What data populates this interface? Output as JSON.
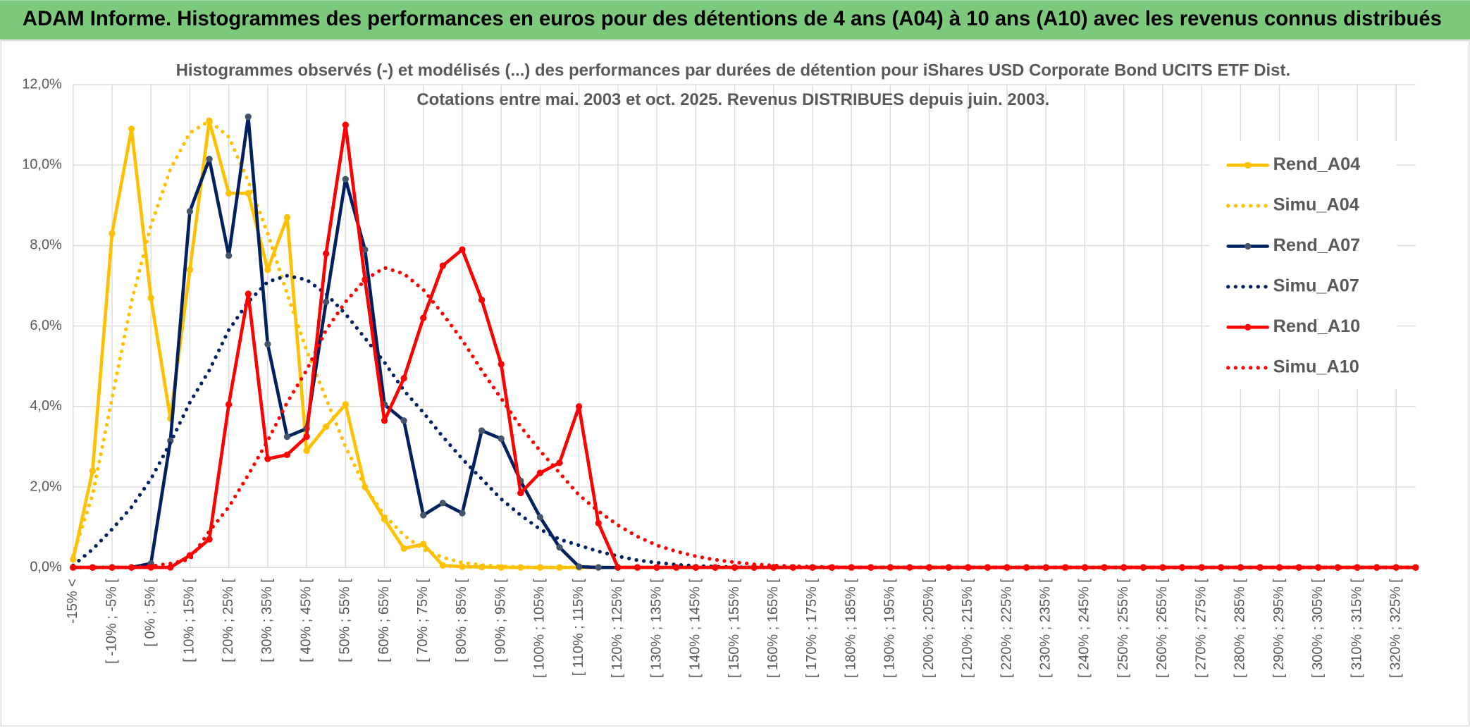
{
  "header": {
    "title": "ADAM Informe. Histogrammes des performances en euros pour des détentions de 4 ans (A04) à 10 ans (A10) avec les revenus connus distribués"
  },
  "chart_data": {
    "type": "line",
    "title": "Histogrammes observés (-) et modélisés (...) des performances par durées de détention pour iShares USD Corporate Bond UCITS ETF Dist.",
    "subtitle": "Cotations entre mai. 2003 et oct. 2025. Revenus DISTRIBUES depuis juin. 2003.",
    "categories": [
      "-15% <",
      null,
      "[ -10% ; -5% [",
      null,
      "[ 0% ; 5% [",
      null,
      "[ 10% ; 15% [",
      null,
      "[ 20% ; 25% [",
      null,
      "[ 30% ; 35% [",
      null,
      "[ 40% ; 45% [",
      null,
      "[ 50% ; 55% [",
      null,
      "[ 60% ; 65% [",
      null,
      "[ 70% ; 75% [",
      null,
      "[ 80% ; 85% [",
      null,
      "[ 90% ; 95% [",
      null,
      "[ 100% ; 105% [",
      null,
      "[ 110% ; 115% [",
      null,
      "[ 120% ; 125% [",
      null,
      "[ 130% ; 135% [",
      null,
      "[ 140% ; 145% [",
      null,
      "[ 150% ; 155% [",
      null,
      "[ 160% ; 165% [",
      null,
      "[ 170% ; 175% [",
      null,
      "[ 180% ; 185% [",
      null,
      "[ 190% ; 195% [",
      null,
      "[ 200% ; 205% [",
      null,
      "[ 210% ; 215% [",
      null,
      "[ 220% ; 225% [",
      null,
      "[ 230% ; 235% [",
      null,
      "[ 240% ; 245% [",
      null,
      "[ 250% ; 255% [",
      null,
      "[ 260% ; 265% [",
      null,
      "[ 270% ; 275% [",
      null,
      "[ 280% ; 285% [",
      null,
      "[ 290% ; 295% [",
      null,
      "[ 300% ; 305% [",
      null,
      "[ 310% ; 315% [",
      null,
      "[ 320% ; 325% [",
      null
    ],
    "ylim": [
      0,
      12
    ],
    "yticks": [
      {
        "value": 0,
        "label": "0,0%"
      },
      {
        "value": 2,
        "label": "2,0%"
      },
      {
        "value": 4,
        "label": "4,0%"
      },
      {
        "value": 6,
        "label": "6,0%"
      },
      {
        "value": 8,
        "label": "8,0%"
      },
      {
        "value": 10,
        "label": "10,0%"
      },
      {
        "value": 12,
        "label": "12,0%"
      }
    ],
    "grid": true,
    "legend": "right",
    "series": [
      {
        "name": "Rend_A04",
        "color": "#ffc000",
        "style": "solid",
        "markers": true,
        "values": [
          0.2,
          2.4,
          8.3,
          10.9,
          6.7,
          3.7,
          7.4,
          11.1,
          9.3,
          9.3,
          7.4,
          8.7,
          2.9,
          3.5,
          4.05,
          2.0,
          1.2,
          0.47,
          0.58,
          0.05,
          0.02,
          0.01,
          0,
          0,
          0,
          0,
          0,
          0,
          0,
          0,
          0,
          0,
          0,
          0,
          0,
          0,
          0,
          0,
          0,
          0,
          0,
          0,
          0,
          0,
          0,
          0,
          0,
          0,
          0,
          0,
          0,
          0,
          0,
          0,
          0,
          0,
          0,
          0,
          0,
          0,
          0,
          0,
          0,
          0,
          0,
          0,
          0,
          0,
          0,
          0
        ]
      },
      {
        "name": "Simu_A04",
        "color": "#ffc000",
        "style": "dotted",
        "markers": false,
        "values": [
          0.3,
          1.8,
          4.2,
          6.6,
          8.5,
          9.9,
          10.8,
          11.1,
          10.7,
          9.6,
          8.3,
          6.8,
          5.4,
          4.2,
          3.0,
          2.0,
          1.3,
          0.8,
          0.45,
          0.25,
          0.12,
          0.06,
          0.03,
          0.01,
          0,
          0,
          0,
          0,
          0,
          0,
          0,
          0,
          0,
          0,
          0,
          0,
          0,
          0,
          0,
          0,
          0,
          0,
          0,
          0,
          0,
          0,
          0,
          0,
          0,
          0,
          0,
          0,
          0,
          0,
          0,
          0,
          0,
          0,
          0,
          0,
          0,
          0,
          0,
          0,
          0,
          0,
          0,
          0,
          0,
          0
        ]
      },
      {
        "name": "Rend_A07",
        "color": "#002060",
        "style": "solid",
        "markers": true,
        "values": [
          0,
          0,
          0,
          0,
          0.1,
          3.15,
          8.85,
          10.15,
          7.75,
          11.2,
          5.55,
          3.25,
          3.45,
          6.6,
          9.65,
          7.9,
          4.05,
          3.65,
          1.3,
          1.6,
          1.35,
          3.4,
          3.2,
          2.15,
          1.25,
          0.5,
          0.02,
          0,
          0,
          0,
          0,
          0,
          0,
          0,
          0,
          0,
          0,
          0,
          0,
          0,
          0,
          0,
          0,
          0,
          0,
          0,
          0,
          0,
          0,
          0,
          0,
          0,
          0,
          0,
          0,
          0,
          0,
          0,
          0,
          0,
          0,
          0,
          0,
          0,
          0,
          0,
          0,
          0,
          0,
          0
        ]
      },
      {
        "name": "Simu_A07",
        "color": "#002060",
        "style": "dotted",
        "markers": false,
        "values": [
          0.05,
          0.45,
          0.95,
          1.5,
          2.2,
          3.1,
          4.1,
          4.9,
          5.9,
          6.6,
          7.1,
          7.25,
          7.15,
          6.8,
          6.3,
          5.7,
          5.1,
          4.4,
          3.85,
          3.25,
          2.7,
          2.2,
          1.7,
          1.3,
          0.95,
          0.7,
          0.55,
          0.4,
          0.28,
          0.18,
          0.12,
          0.07,
          0.04,
          0.02,
          0.01,
          0,
          0,
          0,
          0,
          0,
          0,
          0,
          0,
          0,
          0,
          0,
          0,
          0,
          0,
          0,
          0,
          0,
          0,
          0,
          0,
          0,
          0,
          0,
          0,
          0,
          0,
          0,
          0,
          0,
          0,
          0,
          0,
          0,
          0,
          0
        ]
      },
      {
        "name": "Rend_A10",
        "color": "#ff0000",
        "style": "solid",
        "markers": true,
        "values": [
          0,
          0,
          0,
          0,
          0,
          0,
          0.3,
          0.7,
          4.05,
          6.8,
          2.7,
          2.8,
          3.25,
          7.8,
          11.0,
          7.15,
          3.65,
          4.7,
          6.2,
          7.5,
          7.9,
          6.65,
          5.05,
          1.85,
          2.35,
          2.6,
          4.0,
          1.1,
          0,
          0,
          0,
          0,
          0,
          0,
          0,
          0,
          0,
          0,
          0,
          0,
          0,
          0,
          0,
          0,
          0,
          0,
          0,
          0,
          0,
          0,
          0,
          0,
          0,
          0,
          0,
          0,
          0,
          0,
          0,
          0,
          0,
          0,
          0,
          0,
          0,
          0,
          0,
          0,
          0,
          0
        ]
      },
      {
        "name": "Simu_A10",
        "color": "#ff0000",
        "style": "dotted",
        "markers": false,
        "values": [
          0,
          0,
          0,
          0,
          0.03,
          0.1,
          0.2,
          0.9,
          1.5,
          2.3,
          3.15,
          4.1,
          4.9,
          5.9,
          6.6,
          7.15,
          7.45,
          7.3,
          6.9,
          6.3,
          5.65,
          4.9,
          4.2,
          3.5,
          2.9,
          2.35,
          1.8,
          1.4,
          1.05,
          0.77,
          0.55,
          0.4,
          0.28,
          0.19,
          0.13,
          0.08,
          0.05,
          0.03,
          0.02,
          0.01,
          0,
          0,
          0,
          0,
          0,
          0,
          0,
          0,
          0,
          0,
          0,
          0,
          0,
          0,
          0,
          0,
          0,
          0,
          0,
          0,
          0,
          0,
          0,
          0,
          0,
          0,
          0,
          0,
          0,
          0
        ]
      }
    ]
  }
}
